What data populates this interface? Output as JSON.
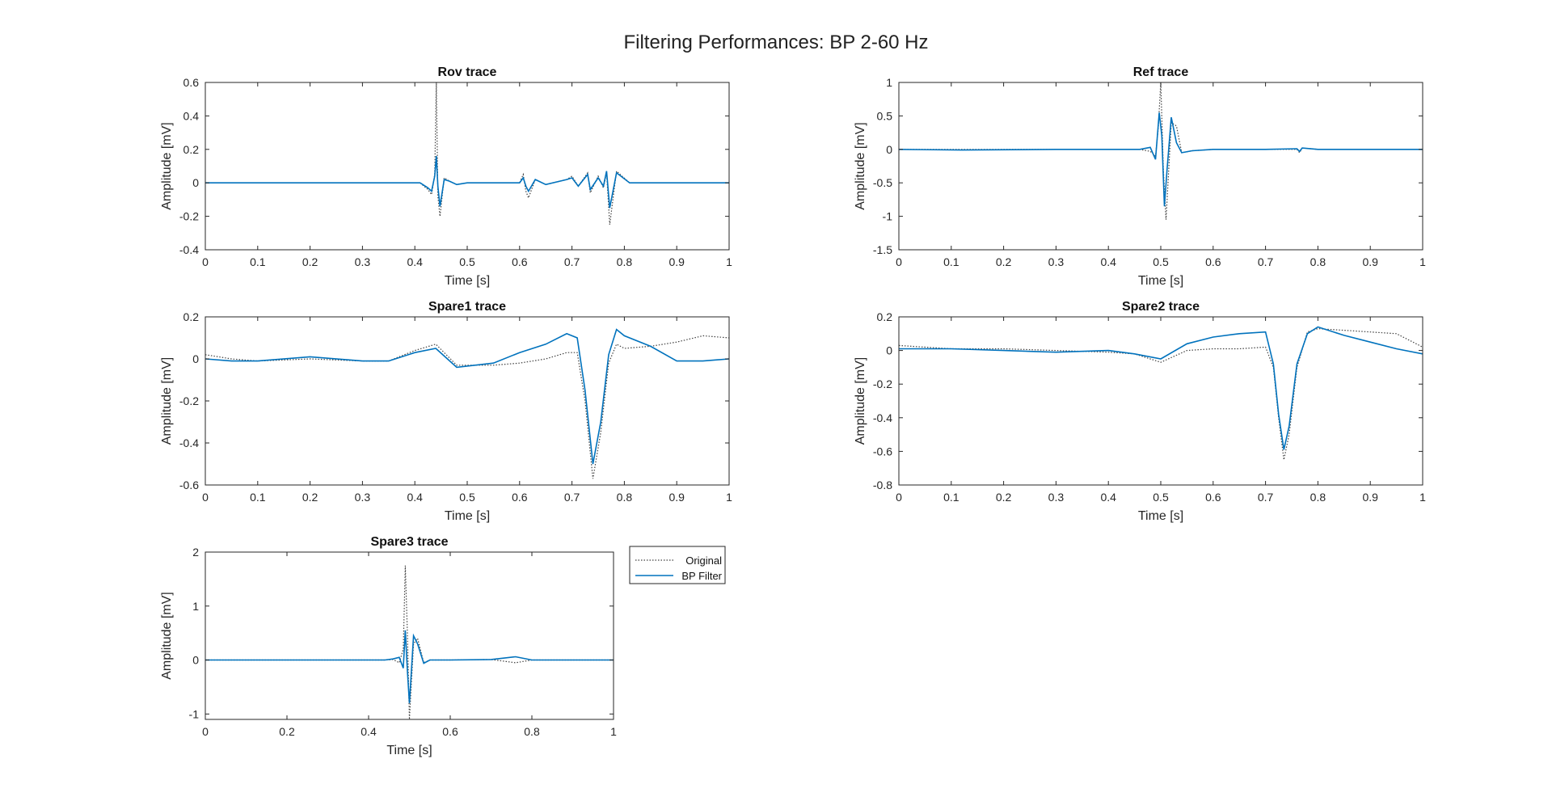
{
  "figure": {
    "title": "Filtering Performances: BP 2-60 Hz",
    "colors": {
      "original": "#404040",
      "filtered": "#0072BD"
    }
  },
  "legend": {
    "entries": [
      {
        "label": "Original",
        "style": "dotted"
      },
      {
        "label": "BP Filter",
        "style": "solid"
      }
    ]
  },
  "chart_data": [
    {
      "type": "line",
      "title": "Rov trace",
      "xlabel": "Time [s]",
      "ylabel": "Amplitude [mV]",
      "xlim": [
        0,
        1
      ],
      "ylim": [
        -0.4,
        0.6
      ],
      "xticks": [
        0,
        0.1,
        0.2,
        0.3,
        0.4,
        0.5,
        0.6,
        0.7,
        0.8,
        0.9,
        1
      ],
      "yticks": [
        -0.4,
        -0.2,
        0,
        0.2,
        0.4,
        0.6
      ],
      "series": [
        {
          "name": "Original",
          "x": [
            0,
            0.2,
            0.41,
            0.425,
            0.432,
            0.438,
            0.441,
            0.444,
            0.448,
            0.456,
            0.466,
            0.48,
            0.5,
            0.6,
            0.607,
            0.612,
            0.617,
            0.63,
            0.65,
            0.69,
            0.7,
            0.712,
            0.73,
            0.735,
            0.75,
            0.76,
            0.766,
            0.772,
            0.785,
            0.81,
            0.9,
            1
          ],
          "y": [
            0,
            0,
            0.0,
            -0.04,
            -0.07,
            0.05,
            0.6,
            -0.08,
            -0.2,
            0.03,
            0.01,
            -0.01,
            0,
            0,
            0.05,
            -0.05,
            -0.09,
            0.02,
            -0.01,
            0.02,
            0.04,
            -0.02,
            0.06,
            -0.06,
            0.04,
            -0.03,
            0.06,
            -0.25,
            0.07,
            0.0,
            0.0,
            0
          ]
        },
        {
          "name": "BP Filter",
          "x": [
            0,
            0.2,
            0.41,
            0.425,
            0.432,
            0.438,
            0.441,
            0.444,
            0.448,
            0.456,
            0.466,
            0.48,
            0.5,
            0.6,
            0.607,
            0.612,
            0.617,
            0.63,
            0.65,
            0.69,
            0.7,
            0.712,
            0.73,
            0.735,
            0.75,
            0.76,
            0.766,
            0.772,
            0.785,
            0.81,
            0.9,
            1
          ],
          "y": [
            0,
            0,
            0.0,
            -0.03,
            -0.05,
            0.04,
            0.16,
            -0.02,
            -0.14,
            0.02,
            0.01,
            -0.01,
            0,
            0,
            0.03,
            -0.02,
            -0.05,
            0.02,
            -0.01,
            0.02,
            0.03,
            -0.02,
            0.05,
            -0.04,
            0.03,
            -0.02,
            0.07,
            -0.15,
            0.06,
            0.0,
            0.0,
            0
          ]
        }
      ]
    },
    {
      "type": "line",
      "title": "Ref trace",
      "xlabel": "Time [s]",
      "ylabel": "Amplitude [mV]",
      "xlim": [
        0,
        1
      ],
      "ylim": [
        -1.5,
        1
      ],
      "xticks": [
        0,
        0.1,
        0.2,
        0.3,
        0.4,
        0.5,
        0.6,
        0.7,
        0.8,
        0.9,
        1
      ],
      "yticks": [
        -1.5,
        -1,
        -0.5,
        0,
        0.5,
        1
      ],
      "series": [
        {
          "name": "Original",
          "x": [
            0,
            0.12,
            0.3,
            0.46,
            0.48,
            0.49,
            0.495,
            0.5,
            0.505,
            0.51,
            0.52,
            0.53,
            0.54,
            0.56,
            0.6,
            0.7,
            0.76,
            0.765,
            0.77,
            0.8,
            1
          ],
          "y": [
            0,
            0,
            0,
            0,
            -0.03,
            -0.1,
            0.3,
            1.0,
            -0.3,
            -1.05,
            0.4,
            0.35,
            -0.05,
            -0.02,
            0,
            0,
            0,
            -0.05,
            0.02,
            0,
            0
          ]
        },
        {
          "name": "BP Filter",
          "x": [
            0,
            0.12,
            0.3,
            0.46,
            0.48,
            0.49,
            0.497,
            0.502,
            0.507,
            0.512,
            0.52,
            0.53,
            0.54,
            0.56,
            0.6,
            0.7,
            0.76,
            0.765,
            0.77,
            0.8,
            1
          ],
          "y": [
            0,
            -0.01,
            0,
            0,
            0.03,
            -0.15,
            0.55,
            0.2,
            -0.85,
            -0.3,
            0.48,
            0.1,
            -0.05,
            -0.02,
            0,
            0,
            0.01,
            -0.03,
            0.02,
            0,
            0
          ]
        }
      ]
    },
    {
      "type": "line",
      "title": "Spare1 trace",
      "xlabel": "Time [s]",
      "ylabel": "Amplitude [mV]",
      "xlim": [
        0,
        1
      ],
      "ylim": [
        -0.6,
        0.2
      ],
      "xticks": [
        0,
        0.1,
        0.2,
        0.3,
        0.4,
        0.5,
        0.6,
        0.7,
        0.8,
        0.9,
        1
      ],
      "yticks": [
        -0.6,
        -0.4,
        -0.2,
        0,
        0.2
      ],
      "series": [
        {
          "name": "Original",
          "x": [
            0,
            0.05,
            0.1,
            0.2,
            0.3,
            0.35,
            0.4,
            0.44,
            0.48,
            0.55,
            0.6,
            0.65,
            0.69,
            0.71,
            0.725,
            0.74,
            0.755,
            0.77,
            0.785,
            0.8,
            0.85,
            0.9,
            0.95,
            1
          ],
          "y": [
            0.02,
            0.0,
            -0.01,
            0.0,
            -0.01,
            -0.01,
            0.04,
            0.07,
            -0.03,
            -0.03,
            -0.02,
            0.0,
            0.03,
            0.03,
            -0.2,
            -0.57,
            -0.35,
            -0.02,
            0.07,
            0.05,
            0.06,
            0.08,
            0.11,
            0.1
          ]
        },
        {
          "name": "BP Filter",
          "x": [
            0,
            0.05,
            0.1,
            0.2,
            0.3,
            0.35,
            0.4,
            0.44,
            0.48,
            0.55,
            0.6,
            0.65,
            0.69,
            0.71,
            0.725,
            0.74,
            0.755,
            0.77,
            0.785,
            0.8,
            0.85,
            0.9,
            0.95,
            1
          ],
          "y": [
            0.0,
            -0.01,
            -0.01,
            0.01,
            -0.01,
            -0.01,
            0.03,
            0.05,
            -0.04,
            -0.02,
            0.03,
            0.07,
            0.12,
            0.1,
            -0.15,
            -0.5,
            -0.3,
            0.02,
            0.14,
            0.11,
            0.06,
            -0.01,
            -0.01,
            0.0
          ]
        }
      ]
    },
    {
      "type": "line",
      "title": "Spare2 trace",
      "xlabel": "Time [s]",
      "ylabel": "Amplitude [mV]",
      "xlim": [
        0,
        1
      ],
      "ylim": [
        -0.8,
        0.2
      ],
      "xticks": [
        0,
        0.1,
        0.2,
        0.3,
        0.4,
        0.5,
        0.6,
        0.7,
        0.8,
        0.9,
        1
      ],
      "yticks": [
        -0.8,
        -0.6,
        -0.4,
        -0.2,
        0,
        0.2
      ],
      "series": [
        {
          "name": "Original",
          "x": [
            0,
            0.1,
            0.2,
            0.3,
            0.4,
            0.45,
            0.5,
            0.55,
            0.6,
            0.65,
            0.7,
            0.715,
            0.725,
            0.735,
            0.745,
            0.76,
            0.78,
            0.8,
            0.85,
            0.9,
            0.95,
            1
          ],
          "y": [
            0.03,
            0.01,
            0.01,
            0.0,
            -0.01,
            -0.02,
            -0.07,
            0.0,
            0.01,
            0.01,
            0.02,
            -0.1,
            -0.4,
            -0.65,
            -0.5,
            -0.1,
            0.11,
            0.13,
            0.12,
            0.11,
            0.1,
            0.02
          ]
        },
        {
          "name": "BP Filter",
          "x": [
            0,
            0.1,
            0.2,
            0.3,
            0.4,
            0.45,
            0.5,
            0.55,
            0.6,
            0.65,
            0.7,
            0.715,
            0.725,
            0.735,
            0.745,
            0.76,
            0.78,
            0.8,
            0.85,
            0.9,
            0.95,
            1
          ],
          "y": [
            0.01,
            0.01,
            0.0,
            -0.01,
            0.0,
            -0.02,
            -0.05,
            0.04,
            0.08,
            0.1,
            0.11,
            -0.08,
            -0.38,
            -0.59,
            -0.45,
            -0.08,
            0.1,
            0.14,
            0.09,
            0.05,
            0.01,
            -0.02
          ]
        }
      ]
    },
    {
      "type": "line",
      "title": "Spare3 trace",
      "xlabel": "Time [s]",
      "ylabel": "Amplitude [mV]",
      "xlim": [
        0,
        1
      ],
      "ylim": [
        -1.1,
        2
      ],
      "xticks": [
        0,
        0.2,
        0.4,
        0.6,
        0.8,
        1
      ],
      "yticks": [
        -1,
        0,
        1,
        2
      ],
      "series": [
        {
          "name": "Original",
          "x": [
            0,
            0.2,
            0.44,
            0.46,
            0.475,
            0.485,
            0.49,
            0.495,
            0.5,
            0.51,
            0.52,
            0.535,
            0.55,
            0.6,
            0.7,
            0.76,
            0.8,
            1
          ],
          "y": [
            0,
            0,
            0,
            0.01,
            -0.05,
            0.2,
            1.75,
            0.5,
            -1.1,
            0.3,
            0.4,
            -0.05,
            0.0,
            0.0,
            0.01,
            -0.05,
            0.0,
            0
          ]
        },
        {
          "name": "BP Filter",
          "x": [
            0,
            0.2,
            0.44,
            0.46,
            0.475,
            0.485,
            0.49,
            0.495,
            0.5,
            0.51,
            0.52,
            0.535,
            0.55,
            0.6,
            0.7,
            0.76,
            0.8,
            1
          ],
          "y": [
            0,
            0,
            0,
            0.02,
            0.05,
            -0.15,
            0.55,
            -0.2,
            -0.8,
            0.45,
            0.3,
            -0.06,
            0.0,
            0.0,
            0.01,
            0.06,
            0.0,
            0
          ]
        }
      ]
    }
  ]
}
